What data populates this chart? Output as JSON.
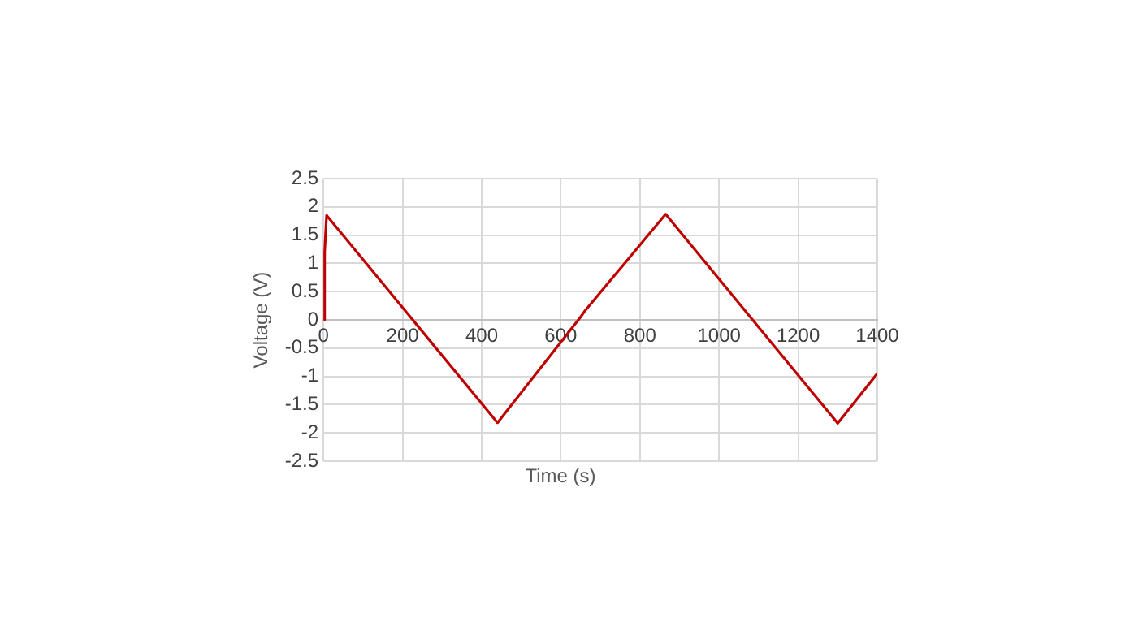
{
  "chart_data": {
    "type": "line",
    "xlabel": "Time (s)",
    "ylabel": "Voltage (V)",
    "x": [
      0,
      3,
      8,
      440,
      650,
      660,
      865,
      1300,
      1400
    ],
    "series": [
      {
        "color": "#c00000",
        "values": [
          0,
          1.2,
          1.85,
          -1.82,
          0.05,
          0.15,
          1.87,
          -1.83,
          -0.95
        ]
      }
    ],
    "xlim": [
      0,
      1400
    ],
    "xticks": [
      0,
      200,
      400,
      600,
      800,
      1000,
      1200,
      1400
    ],
    "ylim": [
      -2.5,
      2.5
    ],
    "yticks": [
      -2.5,
      -2,
      -1.5,
      -1,
      -0.5,
      0,
      0.5,
      1,
      1.5,
      2,
      2.5
    ],
    "grid": true,
    "legend": false,
    "marker": "none",
    "line_style": "solid"
  }
}
